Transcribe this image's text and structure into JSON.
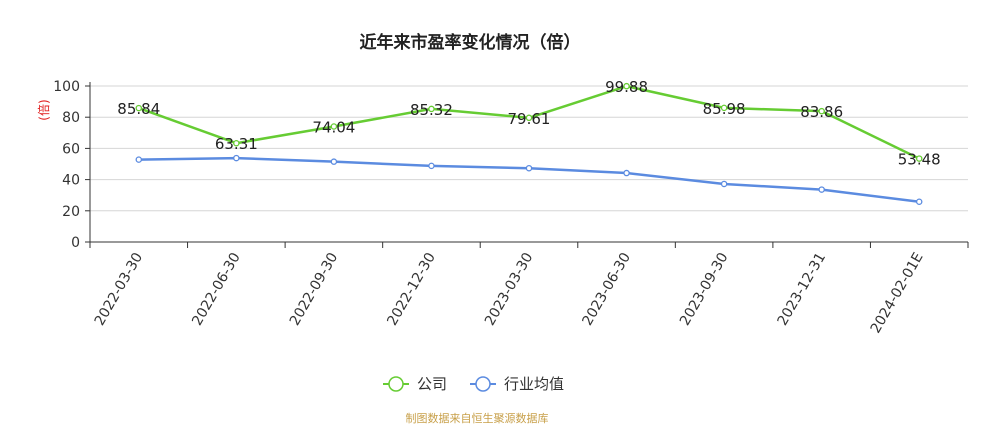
{
  "chart_data": {
    "type": "line",
    "title": "近年来市盈率变化情况（倍）",
    "ylabel": "(倍)",
    "xlabel": "",
    "ylim": [
      0,
      100
    ],
    "yticks": [
      0,
      20,
      40,
      60,
      80,
      100
    ],
    "grid": true,
    "legend_position": "bottom-center",
    "categories": [
      "2022-03-30",
      "2022-06-30",
      "2022-09-30",
      "2022-12-30",
      "2023-03-30",
      "2023-06-30",
      "2023-09-30",
      "2023-12-31",
      "2024-02-01E"
    ],
    "series": [
      {
        "name": "公司",
        "color": "#66cc33",
        "values": [
          85.84,
          63.31,
          74.04,
          85.32,
          79.61,
          99.88,
          85.98,
          83.86,
          53.48
        ],
        "labels": [
          "85.84",
          "63.31",
          "74.04",
          "85.32",
          "79.61",
          "99.88",
          "85.98",
          "83.86",
          "53.48"
        ]
      },
      {
        "name": "行业均值",
        "color": "#5b8be0",
        "values": [
          52.8,
          53.8,
          51.5,
          48.8,
          47.3,
          44.2,
          37.2,
          33.6,
          25.8
        ]
      }
    ],
    "source": "制图数据来自恒生聚源数据库"
  }
}
